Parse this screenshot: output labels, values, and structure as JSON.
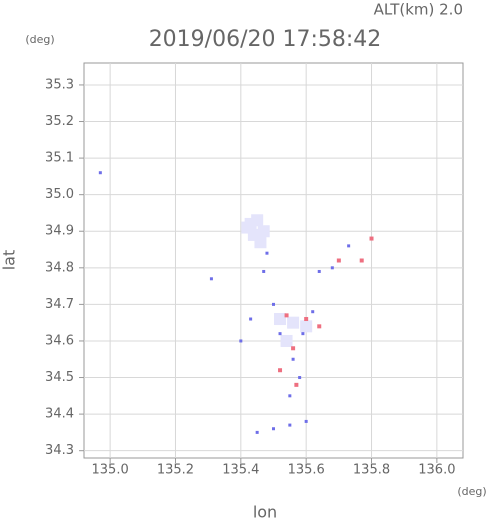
{
  "chart_data": {
    "type": "scatter",
    "title": "2019/06/20 17:58:42",
    "subtitle": "ALT(km) 2.0",
    "y_unit": "(deg)",
    "x_unit": "(deg)",
    "xlabel": "lon",
    "ylabel": "lat",
    "xlim": [
      134.92,
      136.08
    ],
    "ylim": [
      34.28,
      35.36
    ],
    "xticks": [
      {
        "value": 135.0,
        "label": "135.0"
      },
      135.2,
      135.4,
      135.6,
      135.8,
      {
        "value": 136.0,
        "label": "136.0"
      }
    ],
    "yticks": [
      35.3,
      35.2,
      35.1,
      {
        "value": 35.0,
        "label": "35.0"
      },
      34.9,
      34.8,
      34.7,
      34.6,
      34.5,
      34.4,
      34.3
    ],
    "grid": true,
    "series": [
      {
        "color": "#e4e4fb",
        "size": 12,
        "x": [
          135.43,
          135.45,
          135.47,
          135.44,
          135.42,
          135.46,
          135.52,
          135.56,
          135.6,
          135.54
        ],
        "y": [
          34.92,
          34.93,
          34.9,
          34.89,
          34.91,
          34.87,
          34.66,
          34.65,
          34.64,
          34.6
        ]
      },
      {
        "color": "#6e6ee8",
        "size": 3,
        "x": [
          134.97,
          135.31,
          135.47,
          135.48,
          135.43,
          135.4,
          135.5,
          135.56,
          135.58,
          135.55,
          135.62,
          135.64,
          135.68,
          135.73,
          135.45,
          135.5,
          135.55,
          135.6,
          135.59,
          135.52
        ],
        "y": [
          35.06,
          34.77,
          34.79,
          34.84,
          34.66,
          34.6,
          34.7,
          34.55,
          34.5,
          34.45,
          34.68,
          34.79,
          34.8,
          34.86,
          34.35,
          34.36,
          34.37,
          34.38,
          34.62,
          34.62
        ]
      },
      {
        "color": "#ee6f80",
        "size": 4,
        "x": [
          135.8,
          135.77,
          135.56,
          135.52,
          135.6,
          135.64,
          135.57,
          135.7,
          135.54
        ],
        "y": [
          34.88,
          34.82,
          34.58,
          34.52,
          34.66,
          34.64,
          34.48,
          34.82,
          34.67
        ]
      }
    ]
  }
}
